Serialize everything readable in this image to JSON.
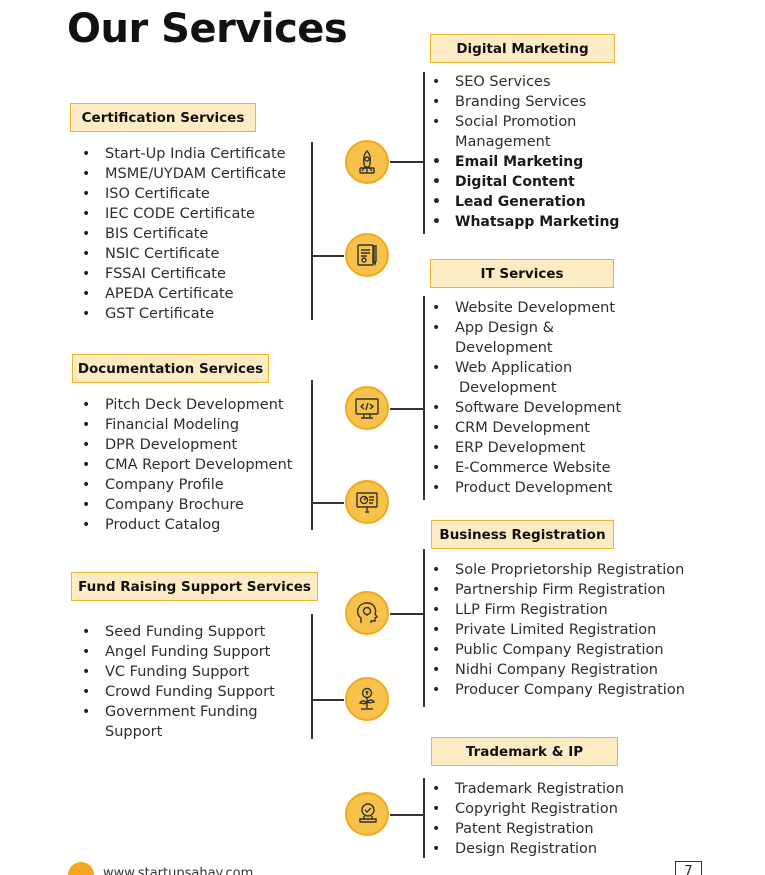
{
  "title": "Our Services",
  "sections": {
    "certification": {
      "heading": "Certification Services",
      "items": [
        "Start-Up India Certificate",
        "MSME/UYDAM Certificate",
        "ISO Certificate",
        "IEC CODE Certificate",
        "BIS Certificate",
        "NSIC Certificate",
        "FSSAI Certificate",
        "APEDA Certificate",
        "GST Certificate"
      ]
    },
    "documentation": {
      "heading": "Documentation Services",
      "items": [
        "Pitch Deck Development",
        "Financial Modeling",
        "DPR Development",
        "CMA Report Development",
        "Company Profile",
        "Company Brochure",
        "Product Catalog"
      ]
    },
    "fund_raising": {
      "heading": "Fund Raising Support Services",
      "items": [
        "Seed Funding Support",
        "Angel Funding Support",
        "VC Funding Support",
        "Crowd Funding Support"
      ],
      "last_item": {
        "line1": "Government Funding",
        "line2": "Support"
      }
    },
    "digital_marketing": {
      "heading": "Digital Marketing",
      "items": [
        "SEO Services",
        "Branding Services"
      ],
      "social": {
        "line1": "Social Promotion",
        "line2": "Management"
      },
      "bold_items": [
        "Email Marketing",
        "Digital Content",
        "Lead Generation",
        "Whatsapp Marketing"
      ]
    },
    "it": {
      "heading": "IT Services",
      "item1": "Website Development",
      "app": {
        "line1": "App Design &",
        "line2": "Development"
      },
      "web": {
        "line1": "Web Application",
        "line2": "Development"
      },
      "items": [
        "Software Development",
        "CRM Development",
        "ERP Development",
        "E-Commerce Website",
        "Product Development"
      ]
    },
    "business_registration": {
      "heading": "Business Registration",
      "items": [
        "Sole Proprietorship Registration",
        "Partnership Firm Registration",
        "LLP Firm Registration",
        "Private Limited Registration",
        "Public Company Registration",
        "Nidhi Company Registration",
        "Producer Company Registration"
      ]
    },
    "trademark": {
      "heading": "Trademark & IP",
      "items": [
        "Trademark Registration",
        "Copyright Registration",
        "Patent Registration",
        "Design Registration"
      ]
    }
  },
  "icons": [
    "rocket-icon",
    "certificate-icon",
    "code-monitor-icon",
    "presentation-icon",
    "idea-head-icon",
    "money-plant-icon",
    "stamp-icon"
  ],
  "footer": {
    "url": "www.startupsahay.com",
    "page": "7"
  },
  "colors": {
    "accent": "#f4a81e",
    "box_fill": "#fdebc4",
    "box_border": "#f0b431",
    "icon_fill": "#f7c24b"
  }
}
